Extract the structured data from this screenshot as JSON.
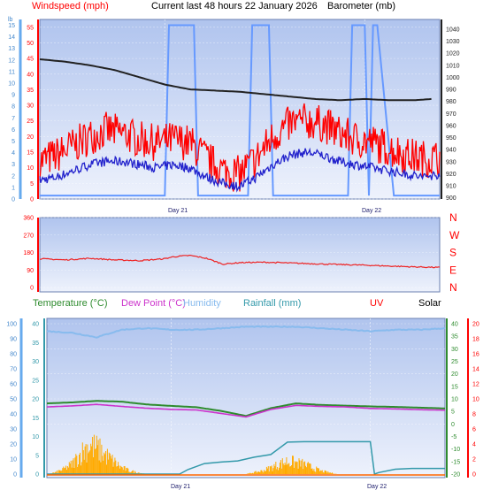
{
  "header": {
    "windspeed": "Windspeed (mph)",
    "title": "Current last 48 hours 22 January 2026",
    "barometer": "Barometer (mb)"
  },
  "legend2": {
    "temperature": "Temperature (°C)",
    "dewpoint": "Dew Point (°C)",
    "humidity": "Humidity",
    "rainfall": "Rainfall (mm)",
    "uv": "UV",
    "solar": "Solar"
  },
  "days": [
    "Day 21",
    "Day 22"
  ],
  "colors": {
    "bg": "#ffffff",
    "plot_top": "#b0c4ee",
    "plot_bottom": "#e8eefc",
    "wind_gust": "#ff0000",
    "wind_avg": "#2222cc",
    "barometer": "#222222",
    "humidity_bars": "#6699ff",
    "direction": "#ee2222",
    "temperature": "#2e8b2e",
    "dewpoint": "#cc33cc",
    "humidity_line": "#88bbee",
    "rainfall": "#3399aa",
    "solar": "#ffaa00",
    "uv_axis": "#ff0000"
  },
  "chart_data": [
    {
      "type": "line",
      "panel": "wind",
      "x_unit": "hours",
      "xlim": [
        0,
        48
      ],
      "left_axis": {
        "label": "Windspeed (mph)",
        "ylim": [
          0,
          57.5
        ],
        "ticks": [
          0,
          5,
          10,
          15,
          20,
          25,
          30,
          35,
          40,
          45,
          50,
          55
        ]
      },
      "far_left_axis": {
        "label": "lb",
        "ylim": [
          0,
          15.5
        ],
        "ticks": [
          0,
          1,
          2,
          3,
          4,
          5,
          6,
          7,
          8,
          9,
          10,
          11,
          12,
          13,
          14,
          15
        ]
      },
      "right_axis": {
        "label": "Barometer (mb)",
        "ylim": [
          899,
          1048
        ],
        "ticks": [
          900,
          910,
          920,
          930,
          940,
          950,
          960,
          970,
          980,
          990,
          1000,
          1010,
          1020,
          1030,
          1040
        ]
      },
      "day_markers": [
        {
          "x": 15,
          "label": "Day 21"
        },
        {
          "x": 39,
          "label": "Day 22"
        }
      ],
      "series": [
        {
          "name": "Wind Gust",
          "axis": "left",
          "x": [
            0,
            2,
            4,
            6,
            8,
            10,
            12,
            14,
            16,
            18,
            20,
            22,
            24,
            26,
            28,
            30,
            32,
            34,
            36,
            38,
            40,
            42,
            44,
            46,
            48
          ],
          "values": [
            12,
            14,
            17,
            20,
            22,
            21,
            19,
            18,
            19,
            18,
            13,
            9,
            8,
            13,
            20,
            24,
            25,
            24,
            21,
            19,
            18,
            16,
            14,
            13,
            13
          ]
        },
        {
          "name": "Wind Average",
          "axis": "left",
          "x": [
            0,
            2,
            4,
            6,
            8,
            10,
            12,
            14,
            16,
            18,
            20,
            22,
            24,
            26,
            28,
            30,
            32,
            34,
            36,
            38,
            40,
            42,
            44,
            46,
            48
          ],
          "values": [
            6,
            7,
            9,
            11,
            12,
            12,
            11,
            10,
            11,
            10,
            7,
            5,
            4,
            7,
            11,
            14,
            15,
            14,
            12,
            11,
            10,
            9,
            8,
            7,
            8
          ]
        },
        {
          "name": "Barometer",
          "axis": "right",
          "x": [
            0,
            3,
            6,
            9,
            12,
            15,
            18,
            21,
            24,
            27,
            30,
            33,
            36,
            39,
            42,
            45,
            47
          ],
          "values": [
            1015,
            1013,
            1010,
            1006,
            1000,
            994,
            990,
            989,
            988,
            986,
            984,
            982,
            981,
            982,
            981,
            981,
            982
          ]
        },
        {
          "name": "Wind Bars",
          "axis": "far_left",
          "x": [
            0,
            15,
            15.5,
            18.5,
            19,
            25,
            25.5,
            27.5,
            28,
            37,
            37.5,
            39,
            39.5,
            40,
            40.5,
            42.5,
            43,
            48
          ],
          "values": [
            0.3,
            0.3,
            15,
            15,
            0.3,
            0.3,
            15,
            15,
            0.3,
            0.3,
            15,
            15,
            0.3,
            15,
            15,
            0.3,
            0.3,
            0.3
          ]
        }
      ]
    },
    {
      "type": "line",
      "panel": "direction",
      "xlim": [
        0,
        48
      ],
      "ylim": [
        0,
        360
      ],
      "ticks": [
        0,
        90,
        180,
        270,
        360
      ],
      "compass_labels": [
        "N",
        "W",
        "S",
        "E",
        "N"
      ],
      "series": [
        {
          "name": "Wind Direction",
          "x": [
            0,
            3,
            6,
            9,
            12,
            15,
            16,
            18,
            20,
            22,
            24,
            27,
            30,
            33,
            36,
            39,
            42,
            45,
            48
          ],
          "values": [
            148,
            142,
            150,
            142,
            138,
            148,
            158,
            165,
            150,
            120,
            128,
            130,
            126,
            122,
            118,
            115,
            110,
            106,
            103
          ]
        }
      ]
    },
    {
      "type": "line",
      "panel": "temperature",
      "xlim": [
        0,
        48
      ],
      "left_axis": {
        "label": "Humidity",
        "ylim": [
          0,
          100
        ],
        "ticks": [
          0,
          5,
          10,
          15,
          20,
          25,
          30,
          35,
          40,
          45,
          50,
          55,
          60,
          65,
          70,
          75,
          80,
          85,
          90,
          95,
          100
        ]
      },
      "inner_left_axis": {
        "label": "Rainfall (mm)",
        "ylim": [
          0,
          40
        ],
        "ticks": [
          0,
          5,
          10,
          15,
          20,
          25,
          30,
          35,
          40
        ]
      },
      "right_axis": {
        "label": "Temperature (°C)",
        "ylim": [
          -20,
          40
        ],
        "ticks": [
          -20,
          -15,
          -10,
          -5,
          0,
          5,
          10,
          15,
          20,
          25,
          30,
          35,
          40
        ]
      },
      "far_right_axis": {
        "label": "UV",
        "ylim": [
          0,
          20
        ],
        "ticks": [
          0,
          2,
          4,
          6,
          8,
          10,
          12,
          14,
          16,
          18,
          20
        ]
      },
      "day_markers": [
        {
          "x": 15,
          "label": "Day 21"
        },
        {
          "x": 39,
          "label": "Day 22"
        }
      ],
      "series": [
        {
          "name": "Humidity",
          "axis": "left",
          "x": [
            0,
            3,
            6,
            9,
            12,
            15,
            18,
            21,
            24,
            27,
            30,
            33,
            36,
            39,
            42,
            45,
            48
          ],
          "values": [
            95,
            94,
            91,
            96,
            97,
            96,
            96,
            97,
            98,
            98,
            98,
            97,
            96,
            95,
            96,
            96,
            97
          ]
        },
        {
          "name": "Temperature",
          "axis": "right",
          "x": [
            0,
            3,
            6,
            9,
            12,
            15,
            18,
            21,
            24,
            27,
            30,
            33,
            36,
            39,
            42,
            45,
            48
          ],
          "values": [
            8.2,
            8.6,
            9.2,
            8.9,
            7.8,
            7.2,
            6.7,
            5.2,
            3.2,
            6.3,
            8.2,
            7.6,
            7.3,
            7.0,
            6.8,
            6.5,
            6.2
          ]
        },
        {
          "name": "Dew Point",
          "axis": "right",
          "x": [
            0,
            3,
            6,
            9,
            12,
            15,
            18,
            21,
            24,
            27,
            30,
            33,
            36,
            39,
            42,
            45,
            48
          ],
          "values": [
            6.8,
            7.2,
            7.8,
            7.0,
            6.3,
            5.8,
            5.6,
            4.2,
            2.8,
            5.8,
            7.4,
            7.0,
            6.8,
            6.2,
            6.0,
            5.7,
            5.5
          ]
        },
        {
          "name": "Rainfall",
          "axis": "inner_left",
          "x": [
            0,
            16,
            17,
            19,
            21,
            23,
            25,
            27,
            29,
            31,
            33,
            35,
            37,
            39,
            39.5,
            40,
            42,
            44,
            46,
            48
          ],
          "values": [
            0,
            0,
            1.2,
            2.8,
            3.2,
            3.5,
            4.5,
            5.2,
            8.5,
            8.6,
            8.6,
            8.6,
            8.6,
            8.6,
            0,
            0.4,
            1.3,
            1.5,
            1.5,
            1.5
          ]
        },
        {
          "name": "Solar",
          "axis": "inner_left",
          "x": [
            0,
            1,
            2,
            3,
            4,
            5,
            6,
            7,
            8,
            9,
            10,
            11,
            12,
            24,
            25,
            26,
            27,
            28,
            29,
            30,
            31,
            32,
            33,
            34,
            35,
            48
          ],
          "values": [
            0,
            0.5,
            1.5,
            3,
            6,
            9,
            8,
            6,
            4,
            2,
            1,
            0.5,
            0,
            0,
            0.5,
            1,
            2,
            3,
            4,
            3.5,
            3,
            2,
            1,
            0.5,
            0,
            0
          ]
        }
      ]
    }
  ]
}
